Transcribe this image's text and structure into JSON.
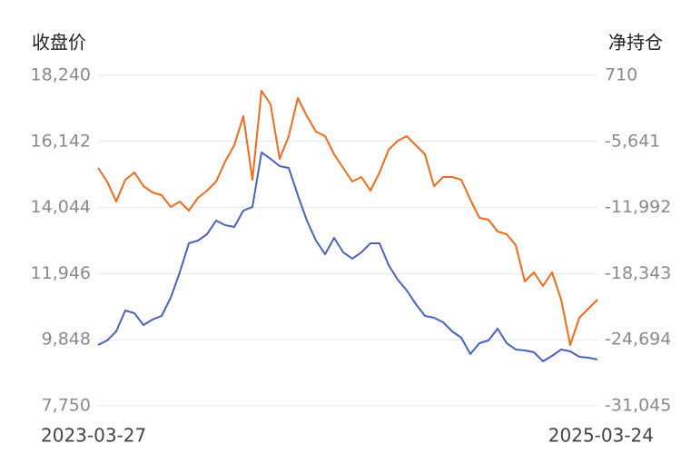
{
  "chart_data": {
    "type": "line",
    "ylabel": "收盘价",
    "y2label": "净持仓",
    "categories": [
      "2023-03-27",
      null,
      null,
      null,
      null,
      null,
      null,
      null,
      null,
      null,
      null,
      null,
      null,
      null,
      null,
      null,
      null,
      null,
      null,
      null,
      null,
      null,
      null,
      null,
      null,
      null,
      null,
      null,
      null,
      null,
      null,
      null,
      null,
      null,
      null,
      null,
      null,
      null,
      null,
      null,
      null,
      null,
      null,
      null,
      null,
      null,
      null,
      null,
      null,
      null,
      null,
      null,
      null,
      null,
      null,
      "2025-03-24"
    ],
    "series": [
      {
        "color": "#4a62c0",
        "axis": "y",
        "values": [
          9681,
          9825,
          10113,
          10776,
          10690,
          10315,
          10488,
          10603,
          11180,
          11987,
          12909,
          12995,
          13197,
          13629,
          13485,
          13428,
          13946,
          14062,
          15791,
          15589,
          15358,
          15301,
          14436,
          13629,
          12995,
          12563,
          13082,
          12621,
          12419,
          12621,
          12909,
          12909,
          12217,
          11756,
          11410,
          10978,
          10603,
          10546,
          10401,
          10113,
          9912,
          9393,
          9739,
          9825,
          10200,
          9739,
          9537,
          9508,
          9450,
          9162,
          9335,
          9537,
          9479,
          9306,
          9277,
          9220
        ]
      },
      {
        "color": "#f26a1b",
        "axis": "y2",
        "values": [
          -8188,
          -9497,
          -11416,
          -9322,
          -8624,
          -9933,
          -10544,
          -10805,
          -11939,
          -11416,
          -12288,
          -11067,
          -10369,
          -9497,
          -7577,
          -6007,
          -3215,
          -9322,
          -773,
          -2081,
          -7316,
          -5135,
          -1471,
          -3215,
          -4699,
          -5135,
          -6880,
          -8188,
          -9497,
          -9061,
          -10369,
          -8624,
          -6443,
          -5571,
          -5135,
          -6007,
          -6880,
          -9933,
          -9061,
          -9061,
          -9322,
          -11242,
          -12986,
          -13161,
          -14295,
          -14557,
          -15604,
          -19093,
          -18221,
          -19529,
          -18221,
          -20838,
          -25200,
          -22583,
          -21710,
          -20838
        ]
      }
    ],
    "ylim": [
      7750,
      18240
    ],
    "yticks": [
      {
        "value": 7750,
        "label": "7,750"
      },
      {
        "value": 9848,
        "label": "9,848"
      },
      {
        "value": 11946,
        "label": "11,946"
      },
      {
        "value": 14044,
        "label": "14,044"
      },
      {
        "value": 16142,
        "label": "16,142"
      },
      {
        "value": 18240,
        "label": "18,240"
      }
    ],
    "y2lim": [
      -31045,
      710
    ],
    "y2ticks": [
      {
        "value": -31045,
        "label": "-31,045"
      },
      {
        "value": -24694,
        "label": "-24,694"
      },
      {
        "value": -18343,
        "label": "-18,343"
      },
      {
        "value": -11992,
        "label": "-11,992"
      },
      {
        "value": -5641,
        "label": "-5,641"
      },
      710
    ],
    "grid": true
  }
}
